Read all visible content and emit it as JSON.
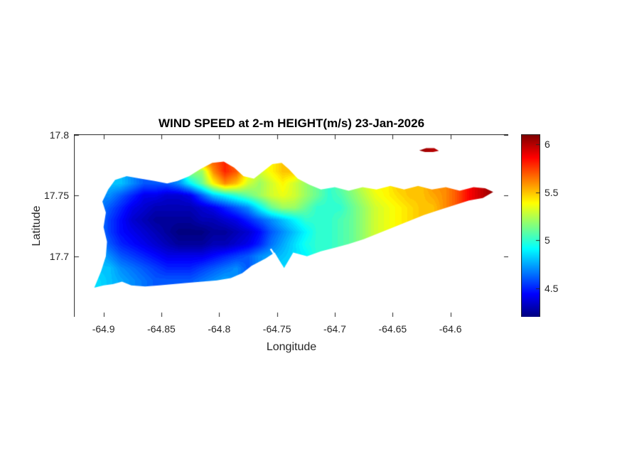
{
  "colors": {
    "background": "#ffffff",
    "axis": "#262626",
    "title_text": "#000000"
  },
  "chart_data": {
    "type": "heatmap",
    "title": "WIND SPEED at 2-m HEIGHT(m/s) 23-Jan-2026",
    "xlabel": "Longitude",
    "ylabel": "Latitude",
    "colormap": "jet",
    "grid_on": false,
    "xlim": [
      -64.925,
      -64.55
    ],
    "ylim": [
      17.65,
      17.8
    ],
    "clim": [
      4.2,
      6.1
    ],
    "xticks": [
      {
        "value": -64.9,
        "label": "-64.9"
      },
      {
        "value": -64.85,
        "label": "-64.85"
      },
      {
        "value": -64.8,
        "label": "-64.8"
      },
      {
        "value": -64.75,
        "label": "-64.75"
      },
      {
        "value": -64.7,
        "label": "-64.7"
      },
      {
        "value": -64.65,
        "label": "-64.65"
      },
      {
        "value": -64.6,
        "label": "-64.6"
      }
    ],
    "yticks": [
      {
        "value": 17.8,
        "label": "17.8"
      },
      {
        "value": 17.75,
        "label": "17.75"
      },
      {
        "value": 17.7,
        "label": "17.7"
      }
    ],
    "colorbar": {
      "position": "right",
      "min": 4.2,
      "max": 6.1,
      "ticks": [
        {
          "value": 6,
          "label": "6"
        },
        {
          "value": 5.5,
          "label": "5.5"
        },
        {
          "value": 5,
          "label": "5"
        },
        {
          "value": 4.5,
          "label": "4.5"
        }
      ]
    },
    "grid": {
      "lon_start": -64.905,
      "lon_step": 0.01,
      "cols": 36,
      "lats": [
        17.79,
        17.78,
        17.77,
        17.76,
        17.75,
        17.74,
        17.73,
        17.72,
        17.71,
        17.7,
        17.69,
        17.68
      ],
      "wind_speed_ms": [
        [
          null,
          null,
          null,
          null,
          null,
          null,
          null,
          null,
          null,
          null,
          null,
          null,
          null,
          null,
          null,
          null,
          null,
          null,
          null,
          null,
          null,
          null,
          null,
          null,
          null,
          null,
          null,
          null,
          6.05,
          6,
          null,
          null,
          null,
          null,
          null,
          null
        ],
        [
          null,
          null,
          null,
          null,
          null,
          null,
          null,
          null,
          null,
          null,
          5.7,
          5.8,
          5.6,
          null,
          null,
          null,
          null,
          null,
          null,
          null,
          null,
          null,
          null,
          null,
          null,
          null,
          null,
          null,
          null,
          null,
          null,
          null,
          null,
          null,
          null,
          null
        ],
        [
          null,
          null,
          null,
          null,
          null,
          null,
          null,
          null,
          null,
          5.2,
          5.6,
          5.8,
          5.7,
          5.4,
          5.3,
          5.4,
          5.5,
          null,
          null,
          null,
          null,
          null,
          null,
          null,
          null,
          null,
          null,
          null,
          null,
          null,
          null,
          null,
          null,
          null,
          null,
          null
        ],
        [
          null,
          4.8,
          4.8,
          4.7,
          4.6,
          4.6,
          4.6,
          4.7,
          4.9,
          5.1,
          5.4,
          5.6,
          5.5,
          5.3,
          5.2,
          5.3,
          5.4,
          5.3,
          5.2,
          5.1,
          5,
          5.1,
          5.2,
          5.3,
          5.4,
          5.4,
          5.5,
          5.5,
          5.5,
          5.6,
          null,
          null,
          null,
          null,
          null,
          null
        ],
        [
          null,
          4.7,
          4.6,
          4.5,
          4.4,
          4.4,
          4.35,
          4.35,
          4.4,
          4.6,
          4.8,
          4.9,
          5,
          5.1,
          5.2,
          5.3,
          5.35,
          5.3,
          5.2,
          5.1,
          5,
          5.05,
          5.15,
          5.25,
          5.35,
          5.4,
          5.45,
          5.5,
          5.5,
          5.55,
          5.6,
          5.7,
          5.85,
          5.95,
          6.05,
          null
        ],
        [
          4.7,
          4.6,
          4.5,
          4.4,
          4.35,
          4.3,
          4.3,
          4.3,
          4.3,
          4.35,
          4.4,
          4.5,
          4.6,
          4.7,
          4.9,
          5.1,
          5.2,
          5.2,
          5.1,
          5,
          5,
          5,
          5.1,
          5.2,
          5.3,
          5.35,
          5.4,
          5.45,
          5.5,
          5.5,
          null,
          null,
          null,
          null,
          null,
          null
        ],
        [
          4.7,
          4.55,
          4.45,
          4.35,
          4.3,
          4.25,
          4.25,
          4.25,
          4.25,
          4.3,
          4.3,
          4.35,
          4.4,
          4.5,
          4.6,
          4.7,
          4.8,
          4.9,
          5,
          5,
          5,
          5.05,
          5.1,
          5.2,
          5.3,
          5.35,
          5.4,
          null,
          null,
          null,
          null,
          null,
          null,
          null,
          null,
          null
        ],
        [
          4.7,
          4.55,
          4.45,
          4.4,
          4.35,
          4.3,
          4.25,
          4.2,
          4.2,
          4.2,
          4.25,
          4.25,
          4.3,
          4.35,
          4.45,
          4.6,
          4.7,
          4.8,
          4.9,
          5,
          5,
          5.05,
          5.1,
          5.2,
          null,
          null,
          null,
          null,
          null,
          null,
          null,
          null,
          null,
          null,
          null,
          null
        ],
        [
          4.75,
          4.6,
          4.5,
          4.45,
          4.4,
          4.35,
          4.3,
          4.25,
          4.25,
          4.25,
          4.3,
          4.3,
          4.35,
          4.4,
          4.5,
          4.65,
          4.75,
          4.85,
          4.95,
          5,
          5,
          null,
          null,
          null,
          null,
          null,
          null,
          null,
          null,
          null,
          null,
          null,
          null,
          null,
          null,
          null
        ],
        [
          4.8,
          4.7,
          4.6,
          4.55,
          4.5,
          4.45,
          4.4,
          4.4,
          4.4,
          4.4,
          4.45,
          4.5,
          4.55,
          4.6,
          4.7,
          4.75,
          4.8,
          4.85,
          4.9,
          null,
          null,
          null,
          null,
          null,
          null,
          null,
          null,
          null,
          null,
          null,
          null,
          null,
          null,
          null,
          null,
          null
        ],
        [
          null,
          4.8,
          4.7,
          4.65,
          4.6,
          4.55,
          4.5,
          4.5,
          4.5,
          4.55,
          4.6,
          4.65,
          4.7,
          null,
          null,
          4.8,
          4.85,
          null,
          null,
          null,
          null,
          null,
          null,
          null,
          null,
          null,
          null,
          null,
          null,
          null,
          null,
          null,
          null,
          null,
          null,
          null
        ],
        [
          4.85,
          4.8,
          4.75,
          4.7,
          4.65,
          4.6,
          4.6,
          4.6,
          4.6,
          4.65,
          4.7,
          4.75,
          null,
          null,
          null,
          null,
          null,
          null,
          null,
          null,
          null,
          null,
          null,
          null,
          null,
          null,
          null,
          null,
          null,
          null,
          null,
          null,
          null,
          null,
          null,
          null
        ]
      ]
    },
    "coastline": {
      "main": [
        [
          -64.908,
          17.674
        ],
        [
          -64.902,
          17.688
        ],
        [
          -64.898,
          17.7
        ],
        [
          -64.897,
          17.712
        ],
        [
          -64.9,
          17.724
        ],
        [
          -64.898,
          17.736
        ],
        [
          -64.901,
          17.745
        ],
        [
          -64.896,
          17.755
        ],
        [
          -64.89,
          17.763
        ],
        [
          -64.88,
          17.766
        ],
        [
          -64.868,
          17.764
        ],
        [
          -64.856,
          17.762
        ],
        [
          -64.845,
          17.76
        ],
        [
          -64.836,
          17.762
        ],
        [
          -64.826,
          17.766
        ],
        [
          -64.816,
          17.772
        ],
        [
          -64.806,
          17.777
        ],
        [
          -64.796,
          17.778
        ],
        [
          -64.787,
          17.773
        ],
        [
          -64.779,
          17.766
        ],
        [
          -64.77,
          17.764
        ],
        [
          -64.762,
          17.77
        ],
        [
          -64.754,
          17.776
        ],
        [
          -64.746,
          17.777
        ],
        [
          -64.74,
          17.772
        ],
        [
          -64.732,
          17.764
        ],
        [
          -64.722,
          17.759
        ],
        [
          -64.712,
          17.755
        ],
        [
          -64.7,
          17.757
        ],
        [
          -64.688,
          17.754
        ],
        [
          -64.676,
          17.757
        ],
        [
          -64.664,
          17.755
        ],
        [
          -64.652,
          17.758
        ],
        [
          -64.64,
          17.755
        ],
        [
          -64.628,
          17.758
        ],
        [
          -64.616,
          17.755
        ],
        [
          -64.604,
          17.757
        ],
        [
          -64.592,
          17.754
        ],
        [
          -64.58,
          17.757
        ],
        [
          -64.57,
          17.756
        ],
        [
          -64.563,
          17.753
        ],
        [
          -64.572,
          17.748
        ],
        [
          -64.584,
          17.746
        ],
        [
          -64.597,
          17.742
        ],
        [
          -64.61,
          17.738
        ],
        [
          -64.623,
          17.734
        ],
        [
          -64.636,
          17.729
        ],
        [
          -64.649,
          17.724
        ],
        [
          -64.662,
          17.719
        ],
        [
          -64.675,
          17.714
        ],
        [
          -64.688,
          17.71
        ],
        [
          -64.7,
          17.707
        ],
        [
          -64.712,
          17.704
        ],
        [
          -64.724,
          17.7
        ],
        [
          -64.736,
          17.703
        ],
        [
          -64.744,
          17.69
        ],
        [
          -64.752,
          17.703
        ],
        [
          -64.76,
          17.698
        ],
        [
          -64.772,
          17.692
        ],
        [
          -64.78,
          17.686
        ],
        [
          -64.79,
          17.682
        ],
        [
          -64.802,
          17.68
        ],
        [
          -64.815,
          17.679
        ],
        [
          -64.828,
          17.678
        ],
        [
          -64.84,
          17.677
        ],
        [
          -64.852,
          17.676
        ],
        [
          -64.864,
          17.675
        ],
        [
          -64.876,
          17.676
        ],
        [
          -64.884,
          17.679
        ],
        [
          -64.892,
          17.677
        ],
        [
          -64.9,
          17.676
        ]
      ],
      "buck_island": [
        [
          -64.627,
          17.7872
        ],
        [
          -64.621,
          17.7892
        ],
        [
          -64.614,
          17.7892
        ],
        [
          -64.61,
          17.787
        ],
        [
          -64.615,
          17.786
        ],
        [
          -64.622,
          17.786
        ]
      ],
      "channel_line": [
        [
          -64.7555,
          17.706
        ],
        [
          -64.7425,
          17.687
        ]
      ]
    }
  }
}
